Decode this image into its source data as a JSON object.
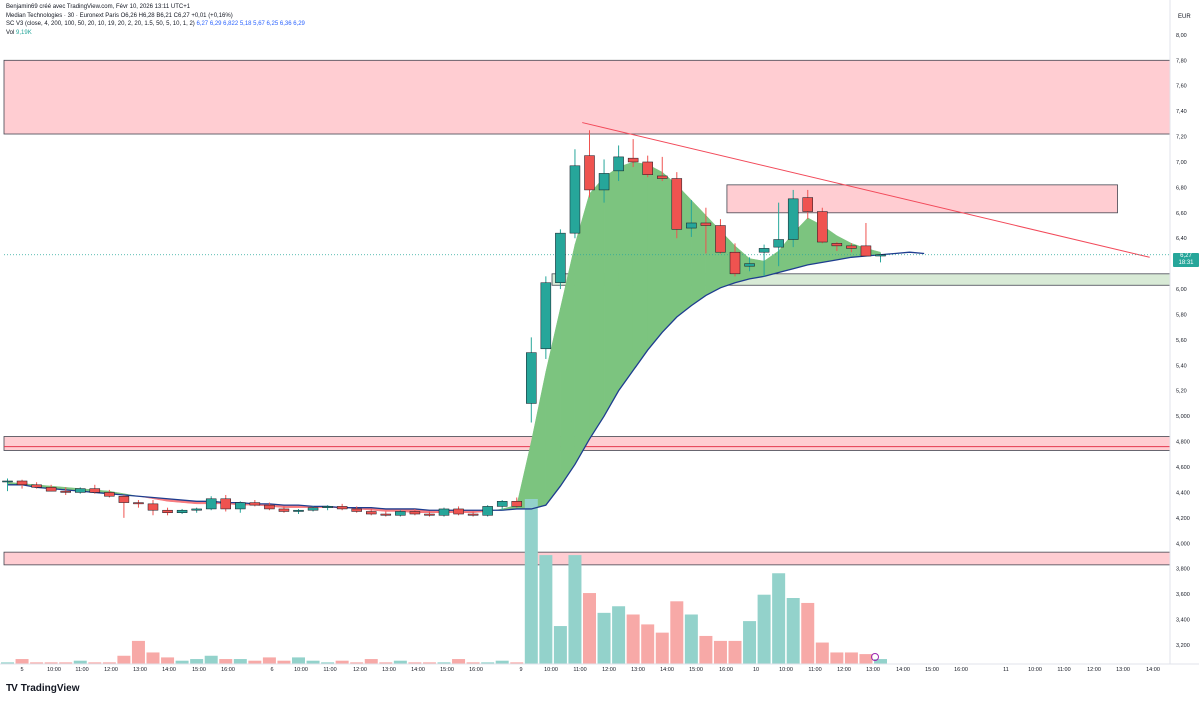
{
  "header": {
    "credit": "Benjamin69 créé avec TradingView.com, Févr 10, 2026 13:11 UTC+1",
    "symbol_line": "Median Technologies · 30 · Euronext Paris",
    "ohlc": "O6,26 H6,28 B6,21 C6,27 +0,01 (+0,16%)",
    "indicator_name": "SC V3 (close, 4, 200, 100, 50, 20, 10, 19, 20, 2, 20, 1.5, 50, 5, 10, 1, 2)",
    "indicator_values": "6,27 6,29 6,822 5,18 5,67 6,25 6,36 6,29",
    "vol_label": "Vol",
    "vol_value": "9,19K"
  },
  "brand": {
    "logo": "TV",
    "name": "TradingView"
  },
  "current_price": {
    "value": "6,27",
    "countdown": "18:31"
  },
  "colors": {
    "up": "#26a69a",
    "down": "#ef5350",
    "zone_red": "#ffcdd2",
    "zone_green": "#d8ead6",
    "cloud_green": "#7cc47f",
    "cloud_red": "#f77c80",
    "line_blue": "#1e3d8f",
    "trend": "#f24a5a"
  },
  "chart_data": {
    "type": "candlestick",
    "currency": "EUR",
    "ylim": [
      3.05,
      8.18
    ],
    "y_ticks": [
      "8,00",
      "7,80",
      "7,60",
      "7,40",
      "7,20",
      "7,00",
      "6,80",
      "6,60",
      "6,40",
      "6,20",
      "6,00",
      "5,80",
      "5,60",
      "5,40",
      "5,20",
      "5,000",
      "4,800",
      "4,600",
      "4,400",
      "4,200",
      "4,000",
      "3,800",
      "3,600",
      "3,400",
      "3,200"
    ],
    "x_ticks": [
      "5",
      "10:00",
      "11:00",
      "12:00",
      "13:00",
      "14:00",
      "15:00",
      "16:00",
      "6",
      "10:00",
      "11:00",
      "12:00",
      "13:00",
      "14:00",
      "15:00",
      "16:00",
      "9",
      "10:00",
      "11:00",
      "12:00",
      "13:00",
      "14:00",
      "15:00",
      "16:00",
      "10",
      "10:00",
      "11:00",
      "12:00",
      "13:00",
      "14:00",
      "15:00",
      "16:00",
      "11",
      "10:00",
      "11:00",
      "12:00",
      "13:00",
      "14:00"
    ],
    "candles": [
      {
        "o": 4.49,
        "h": 4.51,
        "l": 4.41,
        "c": 4.49
      },
      {
        "o": 4.49,
        "h": 4.5,
        "l": 4.43,
        "c": 4.46
      },
      {
        "o": 4.46,
        "h": 4.48,
        "l": 4.43,
        "c": 4.44
      },
      {
        "o": 4.44,
        "h": 4.46,
        "l": 4.41,
        "c": 4.41
      },
      {
        "o": 4.41,
        "h": 4.44,
        "l": 4.38,
        "c": 4.4
      },
      {
        "o": 4.4,
        "h": 4.44,
        "l": 4.39,
        "c": 4.43
      },
      {
        "o": 4.43,
        "h": 4.46,
        "l": 4.39,
        "c": 4.4
      },
      {
        "o": 4.4,
        "h": 4.42,
        "l": 4.36,
        "c": 4.37
      },
      {
        "o": 4.37,
        "h": 4.38,
        "l": 4.2,
        "c": 4.32
      },
      {
        "o": 4.32,
        "h": 4.34,
        "l": 4.28,
        "c": 4.31
      },
      {
        "o": 4.31,
        "h": 4.34,
        "l": 4.22,
        "c": 4.26
      },
      {
        "o": 4.26,
        "h": 4.28,
        "l": 4.22,
        "c": 4.24
      },
      {
        "o": 4.24,
        "h": 4.27,
        "l": 4.23,
        "c": 4.26
      },
      {
        "o": 4.26,
        "h": 4.28,
        "l": 4.24,
        "c": 4.27
      },
      {
        "o": 4.27,
        "h": 4.37,
        "l": 4.26,
        "c": 4.35
      },
      {
        "o": 4.35,
        "h": 4.38,
        "l": 4.25,
        "c": 4.27
      },
      {
        "o": 4.27,
        "h": 4.33,
        "l": 4.24,
        "c": 4.32
      },
      {
        "o": 4.32,
        "h": 4.34,
        "l": 4.29,
        "c": 4.3
      },
      {
        "o": 4.3,
        "h": 4.32,
        "l": 4.26,
        "c": 4.27
      },
      {
        "o": 4.27,
        "h": 4.29,
        "l": 4.24,
        "c": 4.25
      },
      {
        "o": 4.25,
        "h": 4.27,
        "l": 4.23,
        "c": 4.26
      },
      {
        "o": 4.26,
        "h": 4.29,
        "l": 4.25,
        "c": 4.28
      },
      {
        "o": 4.28,
        "h": 4.3,
        "l": 4.26,
        "c": 4.29
      },
      {
        "o": 4.29,
        "h": 4.31,
        "l": 4.26,
        "c": 4.27
      },
      {
        "o": 4.27,
        "h": 4.29,
        "l": 4.24,
        "c": 4.25
      },
      {
        "o": 4.25,
        "h": 4.27,
        "l": 4.22,
        "c": 4.23
      },
      {
        "o": 4.23,
        "h": 4.25,
        "l": 4.21,
        "c": 4.22
      },
      {
        "o": 4.22,
        "h": 4.26,
        "l": 4.21,
        "c": 4.25
      },
      {
        "o": 4.25,
        "h": 4.27,
        "l": 4.22,
        "c": 4.23
      },
      {
        "o": 4.23,
        "h": 4.25,
        "l": 4.21,
        "c": 4.22
      },
      {
        "o": 4.22,
        "h": 4.28,
        "l": 4.21,
        "c": 4.27
      },
      {
        "o": 4.27,
        "h": 4.29,
        "l": 4.22,
        "c": 4.23
      },
      {
        "o": 4.23,
        "h": 4.25,
        "l": 4.21,
        "c": 4.22
      },
      {
        "o": 4.22,
        "h": 4.3,
        "l": 4.21,
        "c": 4.29
      },
      {
        "o": 4.29,
        "h": 4.34,
        "l": 4.26,
        "c": 4.33
      },
      {
        "o": 4.33,
        "h": 4.36,
        "l": 4.28,
        "c": 4.29
      },
      {
        "o": 5.1,
        "h": 5.62,
        "l": 4.95,
        "c": 5.5
      },
      {
        "o": 5.53,
        "h": 6.1,
        "l": 5.45,
        "c": 6.05
      },
      {
        "o": 6.05,
        "h": 6.47,
        "l": 6.0,
        "c": 6.44
      },
      {
        "o": 6.44,
        "h": 7.1,
        "l": 6.4,
        "c": 6.97
      },
      {
        "o": 7.05,
        "h": 7.25,
        "l": 6.72,
        "c": 6.78
      },
      {
        "o": 6.78,
        "h": 7.02,
        "l": 6.68,
        "c": 6.91
      },
      {
        "o": 6.93,
        "h": 7.13,
        "l": 6.85,
        "c": 7.04
      },
      {
        "o": 7.03,
        "h": 7.18,
        "l": 6.96,
        "c": 7.0
      },
      {
        "o": 7.0,
        "h": 7.05,
        "l": 6.88,
        "c": 6.9
      },
      {
        "o": 6.89,
        "h": 7.04,
        "l": 6.85,
        "c": 6.87
      },
      {
        "o": 6.87,
        "h": 6.92,
        "l": 6.4,
        "c": 6.47
      },
      {
        "o": 6.48,
        "h": 6.7,
        "l": 6.41,
        "c": 6.52
      },
      {
        "o": 6.52,
        "h": 6.64,
        "l": 6.28,
        "c": 6.5
      },
      {
        "o": 6.5,
        "h": 6.55,
        "l": 6.28,
        "c": 6.29
      },
      {
        "o": 6.29,
        "h": 6.36,
        "l": 6.1,
        "c": 6.12
      },
      {
        "o": 6.18,
        "h": 6.25,
        "l": 6.14,
        "c": 6.2
      },
      {
        "o": 6.29,
        "h": 6.35,
        "l": 6.1,
        "c": 6.32
      },
      {
        "o": 6.33,
        "h": 6.68,
        "l": 6.18,
        "c": 6.39
      },
      {
        "o": 6.39,
        "h": 6.78,
        "l": 6.33,
        "c": 6.71
      },
      {
        "o": 6.72,
        "h": 6.78,
        "l": 6.55,
        "c": 6.61
      },
      {
        "o": 6.61,
        "h": 6.64,
        "l": 6.36,
        "c": 6.37
      },
      {
        "o": 6.36,
        "h": 6.37,
        "l": 6.3,
        "c": 6.34
      },
      {
        "o": 6.34,
        "h": 6.36,
        "l": 6.29,
        "c": 6.32
      },
      {
        "o": 6.34,
        "h": 6.52,
        "l": 6.26,
        "c": 6.26
      },
      {
        "o": 6.26,
        "h": 6.28,
        "l": 6.21,
        "c": 6.27
      }
    ],
    "volume_ratio": [
      0.01,
      0.03,
      0.01,
      0.01,
      0.01,
      0.02,
      0.01,
      0.01,
      0.05,
      0.14,
      0.07,
      0.04,
      0.02,
      0.03,
      0.05,
      0.03,
      0.03,
      0.02,
      0.04,
      0.02,
      0.04,
      0.02,
      0.01,
      0.02,
      0.01,
      0.03,
      0.01,
      0.02,
      0.01,
      0.01,
      0.01,
      0.03,
      0.01,
      0.01,
      0.02,
      0.01,
      1.0,
      0.66,
      0.23,
      0.66,
      0.43,
      0.31,
      0.35,
      0.3,
      0.24,
      0.19,
      0.38,
      0.3,
      0.17,
      0.14,
      0.14,
      0.26,
      0.42,
      0.55,
      0.4,
      0.37,
      0.13,
      0.07,
      0.07,
      0.06,
      0.03
    ],
    "support_line": [
      4.46,
      4.46,
      4.44,
      4.43,
      4.42,
      4.41,
      4.4,
      4.39,
      4.38,
      4.37,
      4.36,
      4.35,
      4.34,
      4.33,
      4.33,
      4.32,
      4.32,
      4.31,
      4.31,
      4.3,
      4.3,
      4.29,
      4.29,
      4.28,
      4.28,
      4.28,
      4.27,
      4.27,
      4.27,
      4.26,
      4.26,
      4.26,
      4.26,
      4.26,
      4.26,
      4.27,
      4.27,
      4.3,
      4.45,
      4.62,
      4.82,
      5.0,
      5.2,
      5.36,
      5.52,
      5.66,
      5.78,
      5.87,
      5.95,
      6.01,
      6.05,
      6.08,
      6.1,
      6.13,
      6.16,
      6.19,
      6.21,
      6.23,
      6.25,
      6.26,
      6.27
    ],
    "support_line_ext": [
      6.28,
      6.29,
      6.28
    ],
    "cloud_upper": [
      4.48,
      4.47,
      4.46,
      4.45,
      4.44,
      4.43,
      4.42,
      4.41,
      4.39,
      4.37,
      4.35,
      4.33,
      4.32,
      4.31,
      4.31,
      4.31,
      4.3,
      4.3,
      4.29,
      4.28,
      4.28,
      4.28,
      4.28,
      4.28,
      4.27,
      4.26,
      4.25,
      4.25,
      4.24,
      4.24,
      4.24,
      4.24,
      4.24,
      4.25,
      4.27,
      4.3,
      4.8,
      5.35,
      5.85,
      6.35,
      6.75,
      6.88,
      6.96,
      7.0,
      6.98,
      6.92,
      6.82,
      6.7,
      6.58,
      6.46,
      6.34,
      6.24,
      6.22,
      6.3,
      6.44,
      6.56,
      6.5,
      6.42,
      6.36,
      6.32,
      6.29
    ],
    "zones": [
      {
        "y1": 7.22,
        "y2": 7.8,
        "color": "red",
        "x1": 0,
        "x2": 1
      },
      {
        "y1": 6.6,
        "y2": 6.82,
        "color": "red",
        "x1": 0.62,
        "x2": 0.955
      },
      {
        "y1": 6.03,
        "y2": 6.12,
        "color": "green",
        "x1": 0.47,
        "x2": 1
      },
      {
        "y1": 4.73,
        "y2": 4.84,
        "color": "red",
        "x1": 0,
        "x2": 1
      },
      {
        "y1": 3.83,
        "y2": 3.93,
        "color": "red",
        "x1": 0,
        "x2": 1
      }
    ],
    "h_lines": [
      4.76
    ],
    "trendline": {
      "from": [
        39.5,
        7.31
      ],
      "to": [
        78.5,
        6.25
      ]
    }
  }
}
